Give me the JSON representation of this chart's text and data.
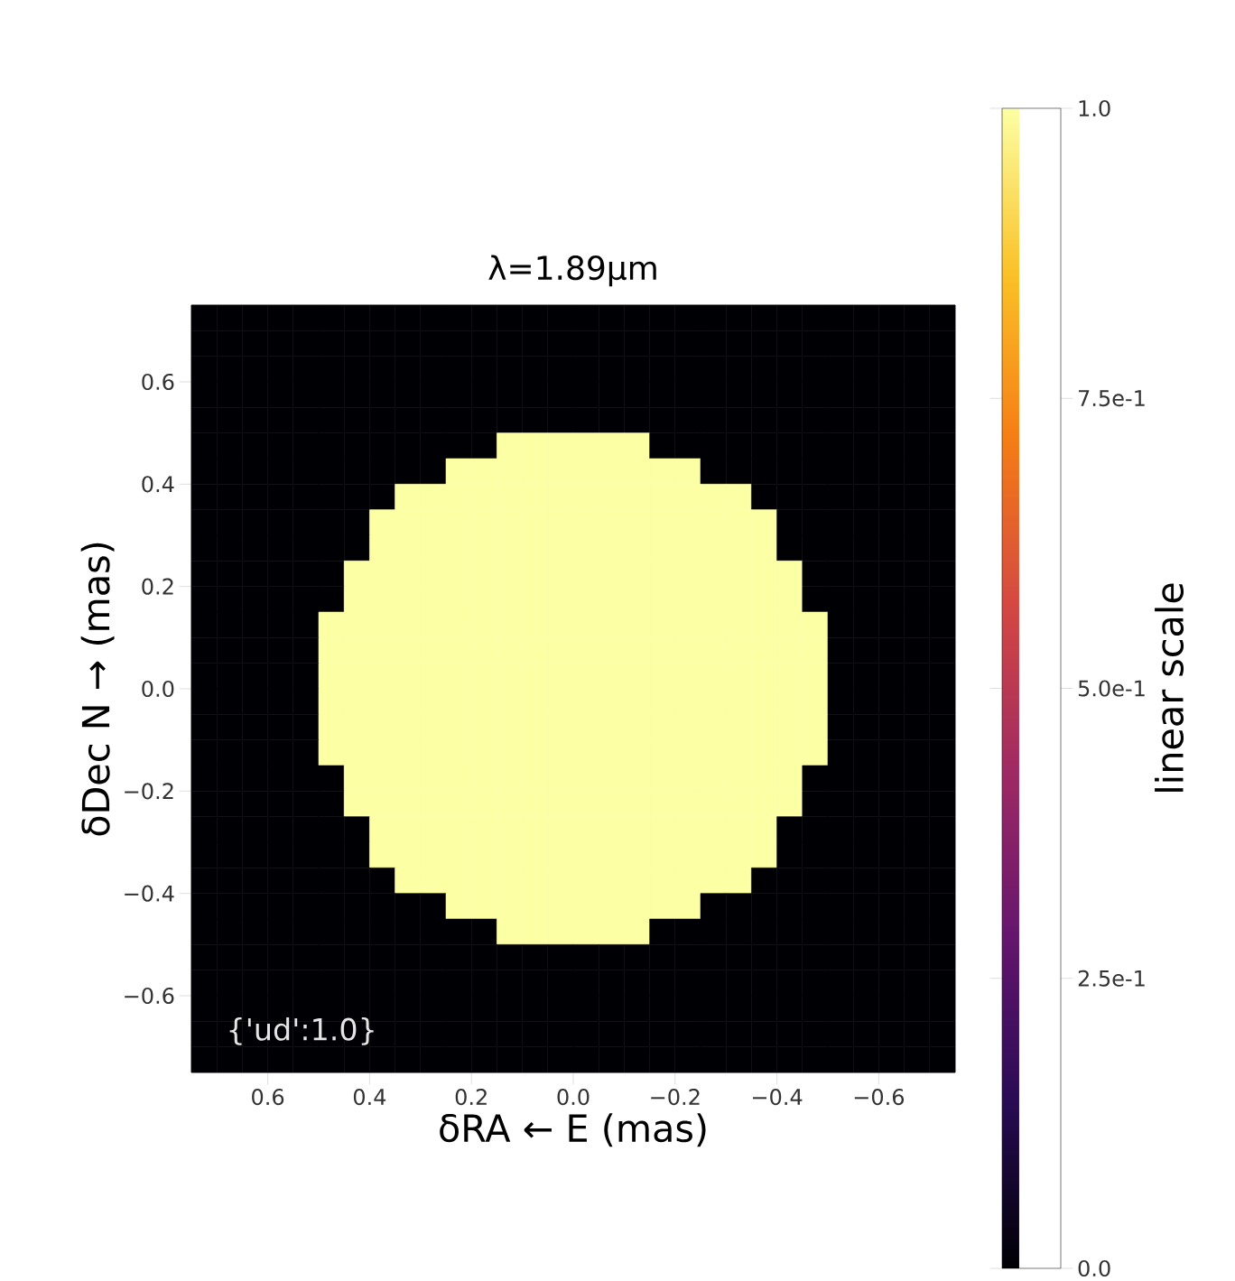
{
  "chart_data": {
    "type": "heatmap",
    "title": "λ=1.89μm",
    "xlabel": "δRA ← E (mas)",
    "ylabel": "δDec N → (mas)",
    "clabel": "linear scale",
    "annotations": [
      "{'ud':1.0}"
    ],
    "xlim": [
      0.75,
      -0.75
    ],
    "ylim": [
      -0.75,
      0.75
    ],
    "xticks": [
      0.6,
      0.4,
      0.2,
      {
        "value": 0,
        "label": "0.0"
      },
      {
        "value": -0.2,
        "label": "−0.2"
      },
      {
        "value": -0.4,
        "label": "−0.4"
      },
      {
        "value": -0.6,
        "label": "−0.6"
      }
    ],
    "yticks": [
      {
        "value": -0.6,
        "label": "−0.6"
      },
      {
        "value": -0.4,
        "label": "−0.4"
      },
      {
        "value": -0.2,
        "label": "−0.2"
      },
      {
        "value": 0,
        "label": "0.0"
      },
      0.2,
      0.4,
      0.6
    ],
    "clim": [
      0,
      1
    ],
    "cticks": [
      {
        "value": 0,
        "label": "0.0"
      },
      {
        "value": 0.25,
        "label": "2.5e-1"
      },
      {
        "value": 0.5,
        "label": "5.0e-1"
      },
      {
        "value": 0.75,
        "label": "7.5e-1"
      },
      {
        "value": 1,
        "label": "1.0"
      }
    ],
    "cells": [
      [
        0,
        0,
        0,
        0,
        0,
        0,
        0,
        0,
        0,
        0,
        0,
        0,
        0,
        0,
        0,
        0,
        0,
        0,
        0,
        0,
        0,
        0,
        0,
        0,
        0,
        0,
        0,
        0,
        0,
        0
      ],
      [
        0,
        0,
        0,
        0,
        0,
        0,
        0,
        0,
        0,
        0,
        0,
        0,
        0,
        0,
        0,
        0,
        0,
        0,
        0,
        0,
        0,
        0,
        0,
        0,
        0,
        0,
        0,
        0,
        0,
        0
      ],
      [
        0,
        0,
        0,
        0,
        0,
        0,
        0,
        0,
        0,
        0,
        0,
        0,
        0,
        0,
        0,
        0,
        0,
        0,
        0,
        0,
        0,
        0,
        0,
        0,
        0,
        0,
        0,
        0,
        0,
        0
      ],
      [
        0,
        0,
        0,
        0,
        0,
        0,
        0,
        0,
        0,
        0,
        0,
        0,
        0,
        0,
        0,
        0,
        0,
        0,
        0,
        0,
        0,
        0,
        0,
        0,
        0,
        0,
        0,
        0,
        0,
        0
      ],
      [
        0,
        0,
        0,
        0,
        0,
        0,
        0,
        0,
        0,
        0,
        0,
        0,
        0,
        0,
        0,
        0,
        0,
        0,
        0,
        0,
        0,
        0,
        0,
        0,
        0,
        0,
        0,
        0,
        0,
        0
      ],
      [
        0,
        0,
        0,
        0,
        0,
        0,
        0,
        0,
        0,
        0,
        0,
        0,
        1,
        1,
        1,
        1,
        1,
        1,
        0,
        0,
        0,
        0,
        0,
        0,
        0,
        0,
        0,
        0,
        0,
        0
      ],
      [
        0,
        0,
        0,
        0,
        0,
        0,
        0,
        0,
        0,
        0,
        1,
        1,
        1,
        1,
        1,
        1,
        1,
        1,
        1,
        1,
        0,
        0,
        0,
        0,
        0,
        0,
        0,
        0,
        0,
        0
      ],
      [
        0,
        0,
        0,
        0,
        0,
        0,
        0,
        0,
        1,
        1,
        1,
        1,
        1,
        1,
        1,
        1,
        1,
        1,
        1,
        1,
        1,
        1,
        0,
        0,
        0,
        0,
        0,
        0,
        0,
        0
      ],
      [
        0,
        0,
        0,
        0,
        0,
        0,
        0,
        1,
        1,
        1,
        1,
        1,
        1,
        1,
        1,
        1,
        1,
        1,
        1,
        1,
        1,
        1,
        1,
        0,
        0,
        0,
        0,
        0,
        0,
        0
      ],
      [
        0,
        0,
        0,
        0,
        0,
        0,
        0,
        1,
        1,
        1,
        1,
        1,
        1,
        1,
        1,
        1,
        1,
        1,
        1,
        1,
        1,
        1,
        1,
        0,
        0,
        0,
        0,
        0,
        0,
        0
      ],
      [
        0,
        0,
        0,
        0,
        0,
        0,
        1,
        1,
        1,
        1,
        1,
        1,
        1,
        1,
        1,
        1,
        1,
        1,
        1,
        1,
        1,
        1,
        1,
        1,
        0,
        0,
        0,
        0,
        0,
        0
      ],
      [
        0,
        0,
        0,
        0,
        0,
        0,
        1,
        1,
        1,
        1,
        1,
        1,
        1,
        1,
        1,
        1,
        1,
        1,
        1,
        1,
        1,
        1,
        1,
        1,
        0,
        0,
        0,
        0,
        0,
        0
      ],
      [
        0,
        0,
        0,
        0,
        0,
        1,
        1,
        1,
        1,
        1,
        1,
        1,
        1,
        1,
        1,
        1,
        1,
        1,
        1,
        1,
        1,
        1,
        1,
        1,
        1,
        0,
        0,
        0,
        0,
        0
      ],
      [
        0,
        0,
        0,
        0,
        0,
        1,
        1,
        1,
        1,
        1,
        1,
        1,
        1,
        1,
        1,
        1,
        1,
        1,
        1,
        1,
        1,
        1,
        1,
        1,
        1,
        0,
        0,
        0,
        0,
        0
      ],
      [
        0,
        0,
        0,
        0,
        0,
        1,
        1,
        1,
        1,
        1,
        1,
        1,
        1,
        1,
        1,
        1,
        1,
        1,
        1,
        1,
        1,
        1,
        1,
        1,
        1,
        0,
        0,
        0,
        0,
        0
      ],
      [
        0,
        0,
        0,
        0,
        0,
        1,
        1,
        1,
        1,
        1,
        1,
        1,
        1,
        1,
        1,
        1,
        1,
        1,
        1,
        1,
        1,
        1,
        1,
        1,
        1,
        0,
        0,
        0,
        0,
        0
      ],
      [
        0,
        0,
        0,
        0,
        0,
        1,
        1,
        1,
        1,
        1,
        1,
        1,
        1,
        1,
        1,
        1,
        1,
        1,
        1,
        1,
        1,
        1,
        1,
        1,
        1,
        0,
        0,
        0,
        0,
        0
      ],
      [
        0,
        0,
        0,
        0,
        0,
        1,
        1,
        1,
        1,
        1,
        1,
        1,
        1,
        1,
        1,
        1,
        1,
        1,
        1,
        1,
        1,
        1,
        1,
        1,
        1,
        0,
        0,
        0,
        0,
        0
      ],
      [
        0,
        0,
        0,
        0,
        0,
        0,
        1,
        1,
        1,
        1,
        1,
        1,
        1,
        1,
        1,
        1,
        1,
        1,
        1,
        1,
        1,
        1,
        1,
        1,
        0,
        0,
        0,
        0,
        0,
        0
      ],
      [
        0,
        0,
        0,
        0,
        0,
        0,
        1,
        1,
        1,
        1,
        1,
        1,
        1,
        1,
        1,
        1,
        1,
        1,
        1,
        1,
        1,
        1,
        1,
        1,
        0,
        0,
        0,
        0,
        0,
        0
      ],
      [
        0,
        0,
        0,
        0,
        0,
        0,
        0,
        1,
        1,
        1,
        1,
        1,
        1,
        1,
        1,
        1,
        1,
        1,
        1,
        1,
        1,
        1,
        1,
        0,
        0,
        0,
        0,
        0,
        0,
        0
      ],
      [
        0,
        0,
        0,
        0,
        0,
        0,
        0,
        1,
        1,
        1,
        1,
        1,
        1,
        1,
        1,
        1,
        1,
        1,
        1,
        1,
        1,
        1,
        1,
        0,
        0,
        0,
        0,
        0,
        0,
        0
      ],
      [
        0,
        0,
        0,
        0,
        0,
        0,
        0,
        0,
        1,
        1,
        1,
        1,
        1,
        1,
        1,
        1,
        1,
        1,
        1,
        1,
        1,
        1,
        0,
        0,
        0,
        0,
        0,
        0,
        0,
        0
      ],
      [
        0,
        0,
        0,
        0,
        0,
        0,
        0,
        0,
        0,
        0,
        1,
        1,
        1,
        1,
        1,
        1,
        1,
        1,
        1,
        1,
        0,
        0,
        0,
        0,
        0,
        0,
        0,
        0,
        0,
        0
      ],
      [
        0,
        0,
        0,
        0,
        0,
        0,
        0,
        0,
        0,
        0,
        0,
        0,
        1,
        1,
        1,
        1,
        1,
        1,
        0,
        0,
        0,
        0,
        0,
        0,
        0,
        0,
        0,
        0,
        0,
        0
      ],
      [
        0,
        0,
        0,
        0,
        0,
        0,
        0,
        0,
        0,
        0,
        0,
        0,
        0,
        0,
        0,
        0,
        0,
        0,
        0,
        0,
        0,
        0,
        0,
        0,
        0,
        0,
        0,
        0,
        0,
        0
      ],
      [
        0,
        0,
        0,
        0,
        0,
        0,
        0,
        0,
        0,
        0,
        0,
        0,
        0,
        0,
        0,
        0,
        0,
        0,
        0,
        0,
        0,
        0,
        0,
        0,
        0,
        0,
        0,
        0,
        0,
        0
      ],
      [
        0,
        0,
        0,
        0,
        0,
        0,
        0,
        0,
        0,
        0,
        0,
        0,
        0,
        0,
        0,
        0,
        0,
        0,
        0,
        0,
        0,
        0,
        0,
        0,
        0,
        0,
        0,
        0,
        0,
        0
      ],
      [
        0,
        0,
        0,
        0,
        0,
        0,
        0,
        0,
        0,
        0,
        0,
        0,
        0,
        0,
        0,
        0,
        0,
        0,
        0,
        0,
        0,
        0,
        0,
        0,
        0,
        0,
        0,
        0,
        0,
        0
      ],
      [
        0,
        0,
        0,
        0,
        0,
        0,
        0,
        0,
        0,
        0,
        0,
        0,
        0,
        0,
        0,
        0,
        0,
        0,
        0,
        0,
        0,
        0,
        0,
        0,
        0,
        0,
        0,
        0,
        0,
        0
      ]
    ]
  }
}
